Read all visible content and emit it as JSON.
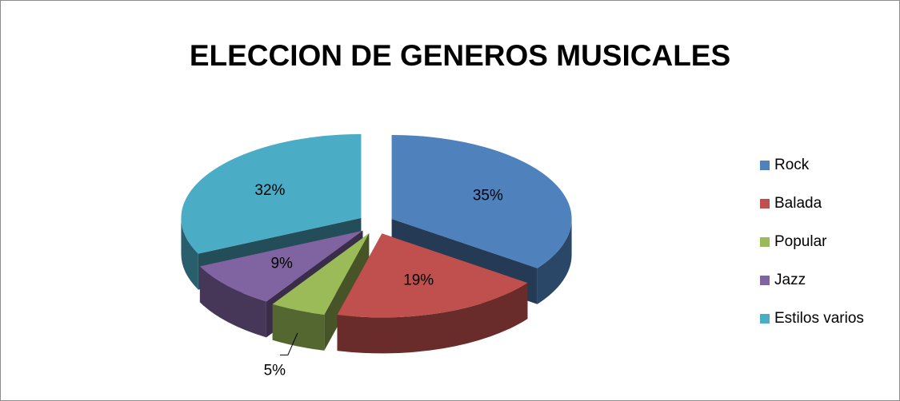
{
  "chart_data": {
    "type": "pie3d",
    "title": "ELECCION DE GENEROS MUSICALES",
    "categories": [
      "Rock",
      "Balada",
      "Popular",
      "Jazz",
      "Estilos varios"
    ],
    "values": [
      35,
      19,
      5,
      9,
      32
    ],
    "value_labels": [
      "35%",
      "19%",
      "5%",
      "9%",
      "32%"
    ],
    "colors": [
      "#4f81bd",
      "#c0504d",
      "#9bbb59",
      "#8064a2",
      "#4bacc6"
    ],
    "legend": "right"
  }
}
